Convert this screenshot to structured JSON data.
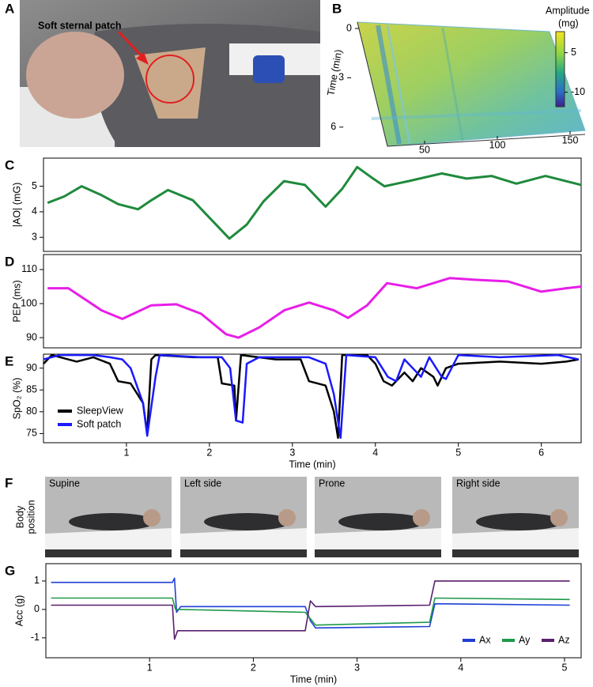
{
  "panels": {
    "a": {
      "letter": "A",
      "annotation": "Soft sternal patch"
    },
    "b": {
      "letter": "B",
      "colorbar_title": "Amplitude",
      "colorbar_unit": "(mg)",
      "colorbar_lim": [
        -15.5,
        13
      ],
      "colorbar_ticks": [
        5,
        -10
      ],
      "ylabel": "Time (min)",
      "yticks": [
        0,
        3,
        6
      ],
      "xticks": [
        50,
        100,
        150
      ]
    },
    "f": {
      "letter": "F",
      "ylabel_lines": [
        "Body",
        "position"
      ],
      "labels": [
        "Supine",
        "Left side",
        "Prone",
        "Right side"
      ]
    }
  },
  "chart_data": [
    {
      "panel": "C",
      "type": "line",
      "ylabel": "|AO| (mG)",
      "xlim": [
        0,
        6.48
      ],
      "ylim": [
        2.45,
        6.1
      ],
      "yticks": [
        3,
        4,
        5
      ],
      "series": [
        {
          "color": "#1f8a3c",
          "width": 3,
          "x": [
            0.05,
            0.25,
            0.46,
            0.7,
            0.9,
            1.14,
            1.3,
            1.5,
            1.8,
            2.05,
            2.24,
            2.45,
            2.65,
            2.9,
            3.15,
            3.4,
            3.6,
            3.78,
            3.95,
            4.11,
            4.4,
            4.8,
            5.1,
            5.4,
            5.7,
            6.05,
            6.48
          ],
          "values": [
            4.35,
            4.6,
            5.0,
            4.65,
            4.3,
            4.1,
            4.45,
            4.85,
            4.45,
            3.6,
            2.95,
            3.5,
            4.4,
            5.2,
            5.05,
            4.2,
            4.9,
            5.75,
            5.35,
            5.0,
            5.2,
            5.5,
            5.3,
            5.4,
            5.1,
            5.4,
            5.05
          ]
        }
      ]
    },
    {
      "panel": "D",
      "type": "line",
      "ylabel": "PEP (ms)",
      "xlim": [
        0,
        6.48
      ],
      "ylim": [
        87,
        114.4
      ],
      "yticks": [
        90,
        100,
        110
      ],
      "series": [
        {
          "color": "#e81ee8",
          "width": 3,
          "x": [
            0.05,
            0.3,
            0.7,
            0.95,
            1.3,
            1.6,
            1.9,
            2.2,
            2.35,
            2.6,
            2.9,
            3.2,
            3.5,
            3.67,
            3.9,
            4.14,
            4.5,
            4.9,
            5.2,
            5.6,
            6.0,
            6.3,
            6.48
          ],
          "values": [
            104.5,
            104.5,
            98,
            95.5,
            99.5,
            99.8,
            97,
            91,
            90,
            93,
            98,
            100.3,
            98,
            95.8,
            99.5,
            106,
            104.5,
            107.5,
            107,
            106.5,
            103.5,
            104.5,
            105
          ]
        }
      ]
    },
    {
      "panel": "E",
      "type": "line",
      "ylabel": "SpO₂ (%)",
      "xlabel": "Time (min)",
      "xlim": [
        0,
        6.48
      ],
      "ylim": [
        72.9,
        93.2
      ],
      "yticks": [
        75,
        80,
        85,
        90
      ],
      "xticks": [
        1,
        2,
        3,
        4,
        5,
        6
      ],
      "legend": "lower left",
      "series": [
        {
          "name": "SleepView",
          "color": "#000000",
          "width": 2.5,
          "x": [
            0.0,
            0.1,
            0.4,
            0.6,
            0.8,
            0.9,
            1.05,
            1.2,
            1.25,
            1.3,
            1.35,
            1.8,
            2.1,
            2.15,
            2.3,
            2.32,
            2.38,
            2.8,
            3.1,
            3.2,
            3.4,
            3.5,
            3.55,
            3.6,
            3.9,
            4.0,
            4.1,
            4.2,
            4.35,
            4.45,
            4.55,
            4.7,
            4.75,
            4.85,
            5.0,
            5.5,
            6.0,
            6.3,
            6.45
          ],
          "values": [
            91,
            93,
            91.5,
            92.5,
            91,
            87,
            86.5,
            82,
            75,
            92,
            93,
            92.5,
            92.5,
            86.5,
            86,
            78,
            93,
            92,
            92,
            87,
            86,
            80,
            74,
            93,
            93,
            91,
            87,
            86,
            89,
            87,
            90,
            88,
            86,
            90,
            91,
            91.5,
            91,
            91.5,
            92
          ]
        },
        {
          "name": "Soft patch",
          "color": "#1a1aff",
          "width": 2.5,
          "x": [
            0.0,
            0.2,
            0.6,
            0.8,
            0.95,
            1.05,
            1.2,
            1.25,
            1.35,
            1.4,
            1.9,
            2.15,
            2.25,
            2.32,
            2.4,
            2.45,
            2.6,
            3.2,
            3.4,
            3.5,
            3.58,
            3.65,
            4.0,
            4.15,
            4.25,
            4.35,
            4.55,
            4.65,
            4.8,
            4.85,
            5.0,
            5.5,
            6.2,
            6.45
          ],
          "values": [
            92,
            93,
            93,
            92.5,
            92,
            90,
            82,
            74.5,
            88,
            93,
            92.5,
            92.5,
            90,
            78,
            77.5,
            91,
            92.5,
            92.5,
            91,
            84,
            74,
            93,
            92.5,
            88,
            87,
            92,
            88,
            92.5,
            88,
            87.5,
            93,
            92.5,
            93,
            92
          ]
        }
      ]
    },
    {
      "panel": "G",
      "type": "line",
      "ylabel": "Acc (g)",
      "xlabel": "Time (min)",
      "xlim": [
        0,
        5.16
      ],
      "ylim": [
        -1.7,
        1.61
      ],
      "yticks": [
        -1,
        0,
        1
      ],
      "xticks": [
        1,
        2,
        3,
        4,
        5
      ],
      "legend": "lower right",
      "series": [
        {
          "name": "Ax",
          "color": "#1f3fd6",
          "width": 1.6,
          "x": [
            0.05,
            1.22,
            1.24,
            1.26,
            1.3,
            2.5,
            2.55,
            2.6,
            3.7,
            3.75,
            5.05
          ],
          "values": [
            0.95,
            0.95,
            1.1,
            -0.1,
            0.1,
            0.1,
            -0.4,
            -0.65,
            -0.6,
            0.2,
            0.15
          ]
        },
        {
          "name": "Ay",
          "color": "#1f9a4a",
          "width": 1.6,
          "x": [
            0.05,
            1.22,
            1.25,
            1.3,
            2.5,
            2.6,
            3.7,
            3.75,
            5.05
          ],
          "values": [
            0.4,
            0.4,
            0.0,
            0.0,
            -0.1,
            -0.55,
            -0.45,
            0.4,
            0.35
          ]
        },
        {
          "name": "Az",
          "color": "#5a1f6e",
          "width": 1.6,
          "x": [
            0.05,
            1.22,
            1.24,
            1.27,
            2.5,
            2.55,
            2.6,
            3.7,
            3.75,
            5.05
          ],
          "values": [
            0.15,
            0.15,
            -1.05,
            -0.75,
            -0.75,
            0.3,
            0.1,
            0.15,
            1.0,
            1.0
          ]
        }
      ]
    }
  ]
}
